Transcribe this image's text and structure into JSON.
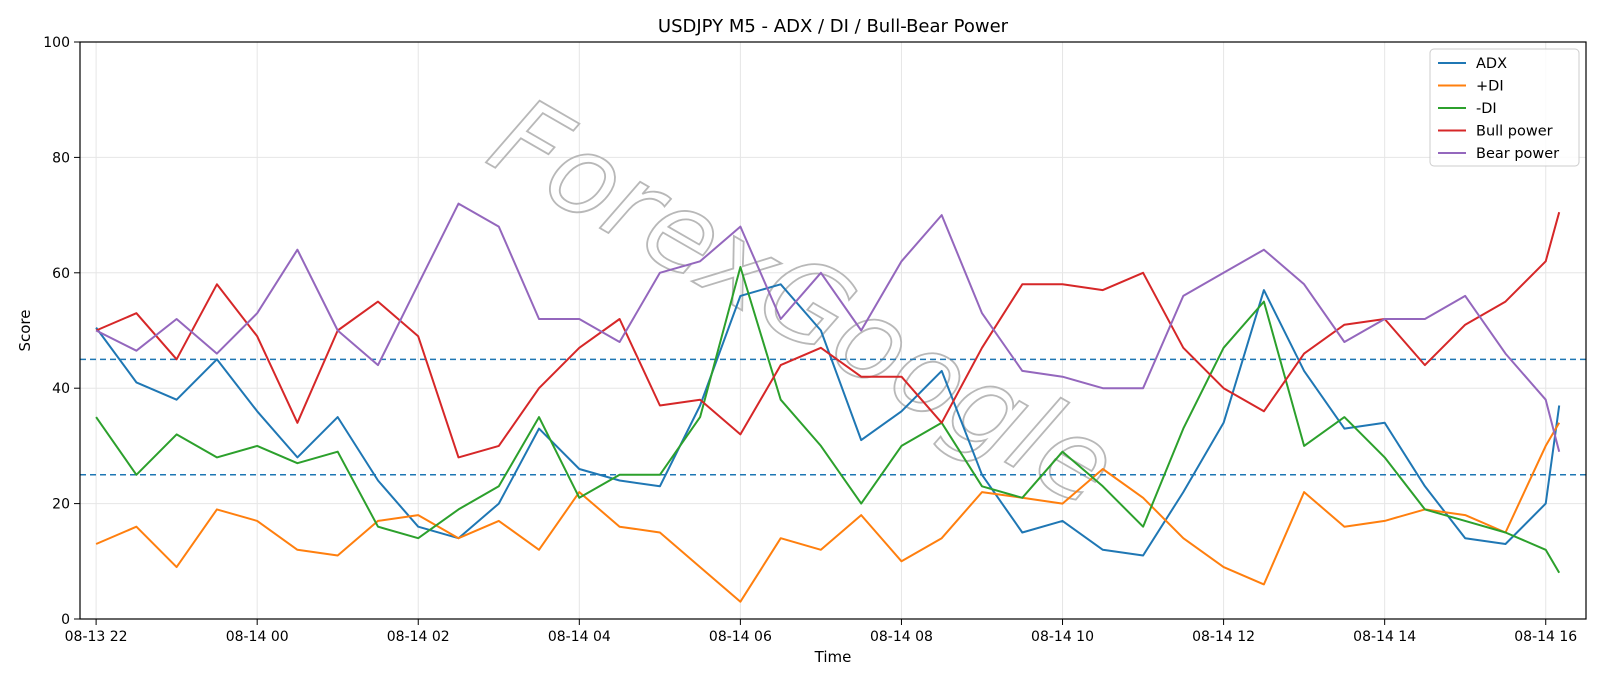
{
  "chart_data": {
    "type": "line",
    "title": "USDJPY M5 - ADX / DI / Bull-Bear Power",
    "xlabel": "Time",
    "ylabel": "Score",
    "ylim": [
      0,
      100
    ],
    "xlim": [
      "08-13 21:48",
      "08-14 16:30"
    ],
    "yticks": [
      0,
      20,
      40,
      60,
      80,
      100
    ],
    "xticks": [
      "08-13 22",
      "08-14 00",
      "08-14 02",
      "08-14 04",
      "08-14 06",
      "08-14 08",
      "08-14 10",
      "08-14 12",
      "08-14 14",
      "08-14 16"
    ],
    "reference_lines": [
      45,
      25
    ],
    "grid": true,
    "legend_position": "top-right",
    "watermark": "ForexGoogle",
    "x": [
      "08-13 22:00",
      "08-13 22:30",
      "08-13 23:00",
      "08-13 23:30",
      "08-14 00:00",
      "08-14 00:30",
      "08-14 01:00",
      "08-14 01:30",
      "08-14 02:00",
      "08-14 02:30",
      "08-14 03:00",
      "08-14 03:30",
      "08-14 04:00",
      "08-14 04:30",
      "08-14 05:00",
      "08-14 05:30",
      "08-14 06:00",
      "08-14 06:30",
      "08-14 07:00",
      "08-14 07:30",
      "08-14 08:00",
      "08-14 08:30",
      "08-14 09:00",
      "08-14 09:30",
      "08-14 10:00",
      "08-14 10:30",
      "08-14 11:00",
      "08-14 11:30",
      "08-14 12:00",
      "08-14 12:30",
      "08-14 13:00",
      "08-14 13:30",
      "08-14 14:00",
      "08-14 14:30",
      "08-14 15:00",
      "08-14 15:30",
      "08-14 16:00",
      "08-14 16:10"
    ],
    "series": [
      {
        "name": "ADX",
        "color": "#1f77b4",
        "values": [
          50.5,
          41,
          38,
          45,
          36,
          28,
          35,
          24,
          16,
          14,
          20,
          33,
          26,
          24,
          23,
          37,
          56,
          58,
          50,
          31,
          36,
          43,
          25,
          15,
          17,
          12,
          11,
          22,
          34,
          57,
          43,
          33,
          34,
          23,
          14,
          13,
          20,
          37
        ]
      },
      {
        "name": "+DI",
        "color": "#ff7f0e",
        "values": [
          13,
          16,
          9,
          19,
          17,
          12,
          11,
          17,
          18,
          14,
          17,
          12,
          22,
          16,
          15,
          9,
          3,
          14,
          12,
          18,
          10,
          14,
          22,
          21,
          20,
          26,
          21,
          14,
          9,
          6,
          22,
          16,
          17,
          19,
          18,
          15,
          30,
          34
        ]
      },
      {
        "name": "-DI",
        "color": "#2ca02c",
        "values": [
          35,
          25,
          32,
          28,
          30,
          27,
          29,
          16,
          14,
          19,
          23,
          35,
          21,
          25,
          25,
          35,
          61,
          38,
          30,
          20,
          30,
          34,
          23,
          21,
          29,
          23,
          16,
          33,
          47,
          55,
          30,
          35,
          28,
          19,
          17,
          15,
          12,
          8
        ]
      },
      {
        "name": "Bull power",
        "color": "#d62728",
        "values": [
          50,
          53,
          45,
          58,
          49,
          34,
          50,
          55,
          49,
          28,
          30,
          40,
          47,
          52,
          37,
          38,
          32,
          44,
          47,
          42,
          42,
          34,
          47,
          58,
          58,
          57,
          60,
          47,
          40,
          36,
          46,
          51,
          52,
          44,
          51,
          55,
          62,
          70.5
        ]
      },
      {
        "name": "Bear power",
        "color": "#9467bd",
        "values": [
          50,
          46.5,
          52,
          46,
          53,
          64,
          50,
          44,
          58,
          72,
          68,
          52,
          52,
          48,
          60,
          62,
          68,
          52,
          60,
          50,
          62,
          70,
          53,
          43,
          42,
          40,
          40,
          56,
          60,
          64,
          58,
          48,
          52,
          52,
          56,
          46,
          38,
          29
        ]
      }
    ]
  }
}
